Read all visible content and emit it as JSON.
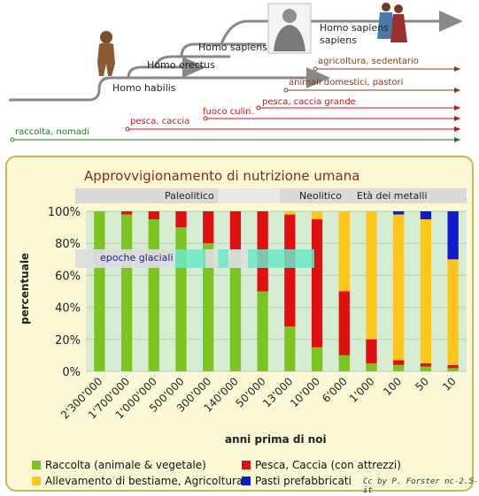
{
  "evolution": {
    "species": [
      {
        "name": "Homo habilis"
      },
      {
        "name": "Homo erectus"
      },
      {
        "name": "Homo sapiens"
      },
      {
        "name": "Homo sapiens sapiens"
      }
    ],
    "activities": [
      {
        "label": "raccolta, nomadi",
        "color": "#1a7a1a"
      },
      {
        "label": "pesca, caccia",
        "color": "#d01010"
      },
      {
        "label": "fuoco culin.",
        "color": "#d01010"
      },
      {
        "label": "pesca, caccia grande",
        "color": "#d01010"
      },
      {
        "label": "animali domestici, pastori",
        "color": "#8a3a10"
      },
      {
        "label": "agricoltura, sedentario",
        "color": "#8a3a10"
      }
    ]
  },
  "chart_data": {
    "type": "bar",
    "stacked": true,
    "title": "Approvvigionamento di nutrizione umana",
    "xlabel": "anni prima di noi",
    "ylabel": "percentuale",
    "ylim": [
      0,
      100
    ],
    "yticks": [
      "0%",
      "20%",
      "40%",
      "60%",
      "80%",
      "100%"
    ],
    "categories": [
      "2'300'000",
      "1'700'000",
      "1'000'000",
      "500'000",
      "300'000",
      "140'000",
      "50'000",
      "13'000",
      "10'000",
      "6'000",
      "1'000",
      "100",
      "50",
      "10"
    ],
    "series": [
      {
        "name": "Raccolta (animale & vegetale)",
        "color": "#7cc520",
        "values": [
          100,
          98,
          95,
          90,
          80,
          75,
          50,
          28,
          15,
          10,
          5,
          4,
          3,
          2
        ]
      },
      {
        "name": "Pesca, Caccia (con attrezzi)",
        "color": "#e01010",
        "values": [
          0,
          2,
          5,
          10,
          20,
          25,
          50,
          70,
          80,
          40,
          15,
          3,
          2,
          2
        ]
      },
      {
        "name": "Allevamento di bestiame, Agricoltura",
        "color": "#ffc61a",
        "values": [
          0,
          0,
          0,
          0,
          0,
          0,
          0,
          2,
          5,
          50,
          80,
          91,
          90,
          66
        ]
      },
      {
        "name": "Pasti prefabbricati",
        "color": "#0f1ccc",
        "values": [
          0,
          0,
          0,
          0,
          0,
          0,
          0,
          0,
          0,
          0,
          0,
          2,
          5,
          30
        ]
      }
    ],
    "periods": [
      "Paleolitico",
      "Neolitico",
      "Età dei metalli"
    ],
    "annotation": "epoche glaciali",
    "legend_position": "bottom"
  },
  "credit": "Cc by P. Forster nc-2.5-it"
}
